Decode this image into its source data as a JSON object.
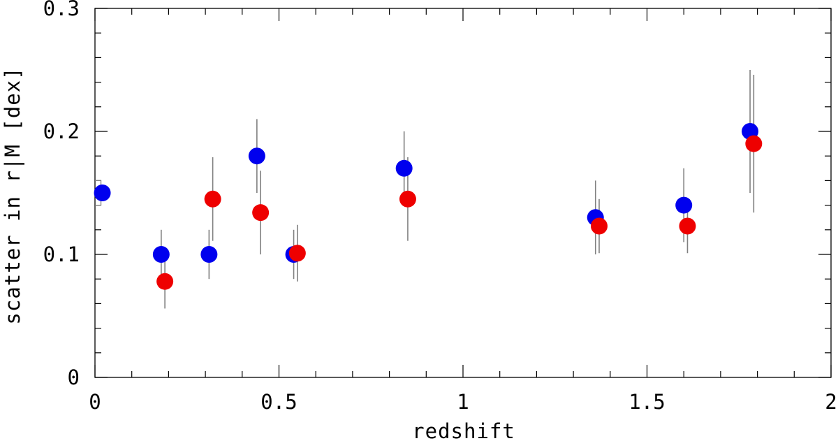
{
  "chart_data": {
    "type": "scatter",
    "title": "",
    "xlabel": "redshift",
    "ylabel": "scatter in r|M [dex]",
    "xlim": [
      0,
      2
    ],
    "ylim": [
      0,
      0.3
    ],
    "x_ticks": [
      0,
      0.5,
      1,
      1.5,
      2
    ],
    "x_tick_labels": [
      "0",
      "0.5",
      "1",
      "1.5",
      "2"
    ],
    "y_ticks": [
      0,
      0.1,
      0.2,
      0.3
    ],
    "y_tick_labels": [
      "0",
      "0.1",
      "0.2",
      "0.3"
    ],
    "x_minor_step": 0.1,
    "y_minor_step": 0.02,
    "grid": false,
    "legend": "none",
    "series": [
      {
        "color": "#0000ee",
        "points": [
          {
            "x": 0.02,
            "y": 0.15,
            "yerr_low": 0.01,
            "yerr_high": 0.01
          },
          {
            "x": 0.18,
            "y": 0.1,
            "yerr_low": 0.02,
            "yerr_high": 0.02
          },
          {
            "x": 0.31,
            "y": 0.1,
            "yerr_low": 0.02,
            "yerr_high": 0.02
          },
          {
            "x": 0.44,
            "y": 0.18,
            "yerr_low": 0.03,
            "yerr_high": 0.03
          },
          {
            "x": 0.54,
            "y": 0.1,
            "yerr_low": 0.02,
            "yerr_high": 0.02
          },
          {
            "x": 0.84,
            "y": 0.17,
            "yerr_low": 0.03,
            "yerr_high": 0.03
          },
          {
            "x": 1.36,
            "y": 0.13,
            "yerr_low": 0.03,
            "yerr_high": 0.03
          },
          {
            "x": 1.6,
            "y": 0.14,
            "yerr_low": 0.03,
            "yerr_high": 0.03
          },
          {
            "x": 1.78,
            "y": 0.2,
            "yerr_low": 0.05,
            "yerr_high": 0.05
          }
        ]
      },
      {
        "color": "#ee0000",
        "points": [
          {
            "x": 0.19,
            "y": 0.078,
            "yerr_low": 0.022,
            "yerr_high": 0.022
          },
          {
            "x": 0.32,
            "y": 0.145,
            "yerr_low": 0.034,
            "yerr_high": 0.034
          },
          {
            "x": 0.45,
            "y": 0.134,
            "yerr_low": 0.034,
            "yerr_high": 0.034
          },
          {
            "x": 0.55,
            "y": 0.101,
            "yerr_low": 0.023,
            "yerr_high": 0.023
          },
          {
            "x": 0.85,
            "y": 0.145,
            "yerr_low": 0.034,
            "yerr_high": 0.034
          },
          {
            "x": 1.37,
            "y": 0.123,
            "yerr_low": 0.022,
            "yerr_high": 0.022
          },
          {
            "x": 1.61,
            "y": 0.123,
            "yerr_low": 0.022,
            "yerr_high": 0.022
          },
          {
            "x": 1.79,
            "y": 0.19,
            "yerr_low": 0.056,
            "yerr_high": 0.056
          }
        ]
      }
    ],
    "errorbar_color": "#808080"
  }
}
